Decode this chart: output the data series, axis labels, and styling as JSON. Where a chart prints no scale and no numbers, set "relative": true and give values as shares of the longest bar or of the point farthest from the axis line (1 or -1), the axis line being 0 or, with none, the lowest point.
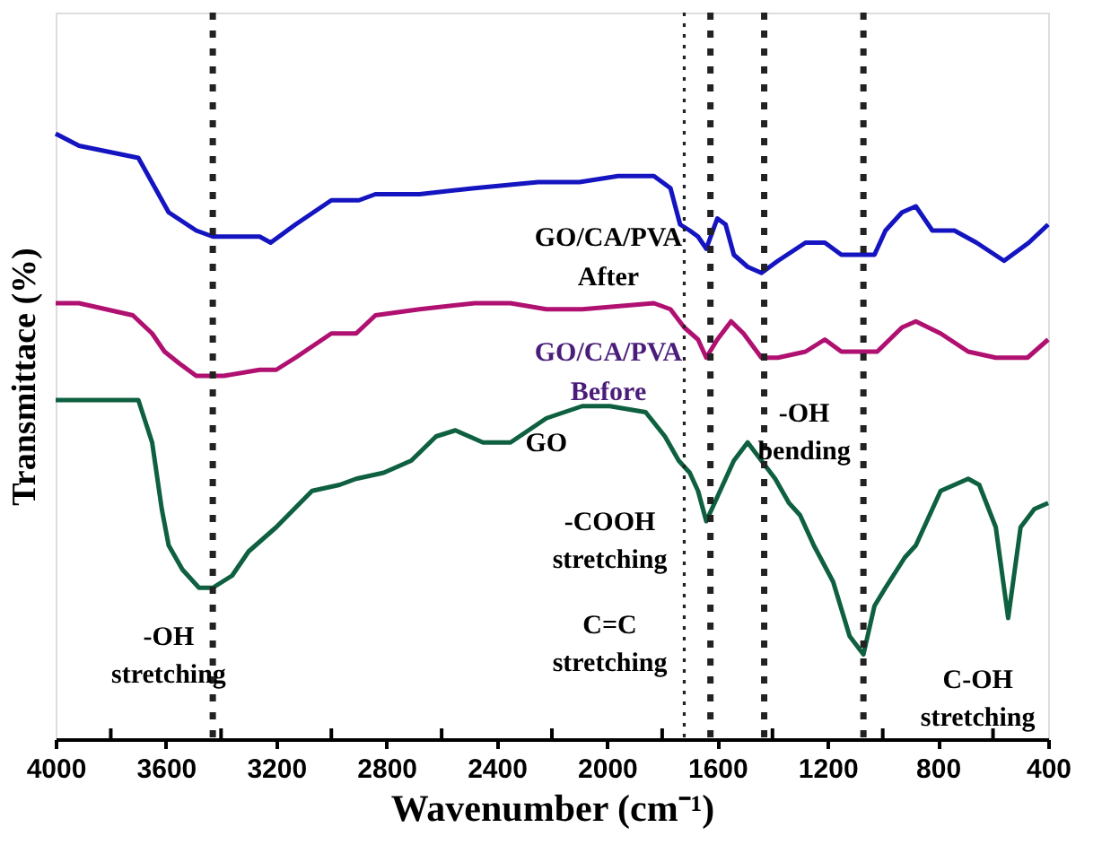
{
  "chart_data": {
    "type": "line",
    "relative": true,
    "xlabel": "Wavenumber (cm⁻¹)",
    "ylabel": "Transmittace (%)",
    "xlim": [
      4000,
      400
    ],
    "xticks": [
      4000,
      {
        "value": 3800,
        "label": null
      },
      3600,
      {
        "value": 3400,
        "label": null
      },
      3200,
      {
        "value": 3000,
        "label": null
      },
      2800,
      {
        "value": 2600,
        "label": null
      },
      2400,
      {
        "value": 2200,
        "label": null
      },
      2000,
      {
        "value": 1800,
        "label": null
      },
      1600,
      {
        "value": 1400,
        "label": null
      },
      1200,
      {
        "value": 1000,
        "label": null
      },
      800,
      {
        "value": 600,
        "label": null
      },
      400
    ],
    "grid": false,
    "legend": false,
    "marker": "none",
    "line_style": "solid",
    "series": [
      {
        "name": "GO/CA/PVA After",
        "color": "#1414c0",
        "x": [
          4000,
          3915,
          3700,
          3590,
          3490,
          3430,
          3260,
          3220,
          3130,
          3000,
          2900,
          2840,
          2680,
          2480,
          2250,
          2100,
          1960,
          1830,
          1770,
          1735,
          1700,
          1670,
          1640,
          1600,
          1570,
          1540,
          1490,
          1440,
          1380,
          1280,
          1210,
          1150,
          1080,
          1030,
          990,
          930,
          880,
          820,
          740,
          660,
          560,
          470,
          400
        ],
        "values": [
          1.0,
          0.98,
          0.96,
          0.87,
          0.84,
          0.83,
          0.83,
          0.82,
          0.85,
          0.89,
          0.89,
          0.9,
          0.9,
          0.91,
          0.92,
          0.92,
          0.93,
          0.93,
          0.91,
          0.85,
          0.84,
          0.83,
          0.81,
          0.86,
          0.85,
          0.8,
          0.78,
          0.77,
          0.79,
          0.82,
          0.82,
          0.8,
          0.8,
          0.8,
          0.84,
          0.87,
          0.88,
          0.84,
          0.84,
          0.82,
          0.79,
          0.82,
          0.85
        ]
      },
      {
        "name": "GO/CA/PVA Before",
        "color": "#b01070",
        "x": [
          4000,
          3915,
          3720,
          3650,
          3605,
          3550,
          3490,
          3390,
          3260,
          3200,
          3130,
          3000,
          2910,
          2840,
          2680,
          2480,
          2350,
          2220,
          2090,
          1830,
          1770,
          1720,
          1670,
          1640,
          1600,
          1550,
          1505,
          1440,
          1380,
          1280,
          1210,
          1150,
          1080,
          1020,
          930,
          880,
          790,
          690,
          590,
          475,
          400
        ],
        "values": [
          0.72,
          0.72,
          0.7,
          0.67,
          0.64,
          0.62,
          0.6,
          0.6,
          0.61,
          0.61,
          0.63,
          0.67,
          0.67,
          0.7,
          0.71,
          0.72,
          0.72,
          0.71,
          0.71,
          0.72,
          0.71,
          0.68,
          0.66,
          0.63,
          0.66,
          0.69,
          0.67,
          0.63,
          0.63,
          0.64,
          0.66,
          0.64,
          0.64,
          0.64,
          0.68,
          0.69,
          0.67,
          0.64,
          0.63,
          0.63,
          0.66
        ]
      },
      {
        "name": "GO",
        "color": "#0e6040",
        "x": [
          4000,
          3700,
          3650,
          3615,
          3590,
          3540,
          3480,
          3430,
          3360,
          3300,
          3200,
          3070,
          2970,
          2910,
          2810,
          2710,
          2620,
          2550,
          2450,
          2350,
          2220,
          2090,
          1990,
          1860,
          1790,
          1740,
          1700,
          1670,
          1640,
          1600,
          1540,
          1490,
          1440,
          1390,
          1340,
          1300,
          1250,
          1180,
          1120,
          1070,
          1030,
          990,
          920,
          880,
          790,
          690,
          650,
          590,
          545,
          500,
          450,
          400
        ],
        "values": [
          0.56,
          0.56,
          0.49,
          0.38,
          0.32,
          0.28,
          0.25,
          0.25,
          0.27,
          0.31,
          0.35,
          0.41,
          0.42,
          0.43,
          0.44,
          0.46,
          0.5,
          0.51,
          0.49,
          0.49,
          0.53,
          0.55,
          0.55,
          0.54,
          0.5,
          0.46,
          0.44,
          0.41,
          0.36,
          0.4,
          0.46,
          0.49,
          0.46,
          0.43,
          0.39,
          0.37,
          0.32,
          0.26,
          0.17,
          0.14,
          0.22,
          0.25,
          0.3,
          0.32,
          0.41,
          0.43,
          0.42,
          0.35,
          0.2,
          0.35,
          0.38,
          0.39
        ]
      }
    ],
    "ref_lines": [
      {
        "axis": "x",
        "value": 3430,
        "color": "#222222",
        "line_style": "dashed"
      },
      {
        "axis": "x",
        "value": 1720,
        "color": "#222222",
        "line_style": "dotted"
      },
      {
        "axis": "x",
        "value": 1625,
        "color": "#222222",
        "line_style": "dashed"
      },
      {
        "axis": "x",
        "value": 1430,
        "color": "#222222",
        "line_style": "dashed"
      },
      {
        "axis": "x",
        "value": 1070,
        "color": "#222222",
        "line_style": "dashed"
      }
    ],
    "annotations": [
      "-OH stretching",
      "-COOH stretching",
      "C=C stretching",
      "-OH bending",
      "C-OH stretching"
    ]
  }
}
